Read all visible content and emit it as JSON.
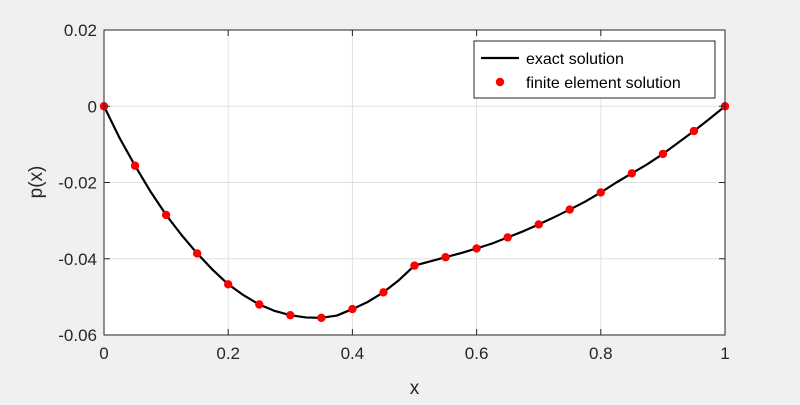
{
  "chart_data": {
    "type": "line",
    "title": "",
    "xlabel": "x",
    "ylabel": "p(x)",
    "xlim": [
      0,
      1
    ],
    "ylim": [
      -0.06,
      0.02
    ],
    "xticks": [
      0,
      0.2,
      0.4,
      0.6,
      0.8,
      1
    ],
    "xtick_labels": [
      "0",
      "0.2",
      "0.4",
      "0.6",
      "0.8",
      "1"
    ],
    "yticks": [
      -0.06,
      -0.04,
      -0.02,
      0,
      0.02
    ],
    "ytick_labels": [
      "-0.06",
      "-0.04",
      "-0.02",
      "0",
      "0.02"
    ],
    "grid": true,
    "legend_position": "top-right",
    "colors": {
      "exact": "#000000",
      "fem": "#ff0000",
      "axes_bg": "#ffffff",
      "figure_bg": "#f0f0f0",
      "grid": "#e0e0e0",
      "axis": "#262626"
    },
    "series": [
      {
        "name": "exact solution",
        "style": "line",
        "x": [
          0,
          0.025,
          0.05,
          0.075,
          0.1,
          0.125,
          0.15,
          0.175,
          0.2,
          0.225,
          0.25,
          0.275,
          0.3,
          0.325,
          0.35,
          0.375,
          0.4,
          0.425,
          0.45,
          0.475,
          0.5,
          0.525,
          0.55,
          0.575,
          0.6,
          0.625,
          0.65,
          0.675,
          0.7,
          0.725,
          0.75,
          0.775,
          0.8,
          0.825,
          0.85,
          0.875,
          0.9,
          0.925,
          0.95,
          0.975,
          1
        ],
        "y": [
          0,
          -0.0083,
          -0.0156,
          -0.0224,
          -0.0285,
          -0.0338,
          -0.0386,
          -0.0429,
          -0.0467,
          -0.0496,
          -0.052,
          -0.0537,
          -0.0548,
          -0.0554,
          -0.0555,
          -0.0549,
          -0.0532,
          -0.0513,
          -0.0488,
          -0.0456,
          -0.0418,
          -0.0407,
          -0.0396,
          -0.0385,
          -0.0373,
          -0.036,
          -0.0344,
          -0.0328,
          -0.031,
          -0.0291,
          -0.0271,
          -0.025,
          -0.0226,
          -0.02,
          -0.0176,
          -0.0152,
          -0.0125,
          -0.0095,
          -0.0065,
          -0.0033,
          0
        ]
      },
      {
        "name": "finite element solution",
        "style": "markers",
        "x": [
          0,
          0.05,
          0.1,
          0.15,
          0.2,
          0.25,
          0.3,
          0.35,
          0.4,
          0.45,
          0.5,
          0.55,
          0.6,
          0.65,
          0.7,
          0.75,
          0.8,
          0.85,
          0.9,
          0.95,
          1
        ],
        "y": [
          0,
          -0.0156,
          -0.0285,
          -0.0386,
          -0.0467,
          -0.052,
          -0.0548,
          -0.0555,
          -0.0532,
          -0.0488,
          -0.0418,
          -0.0396,
          -0.0373,
          -0.0344,
          -0.031,
          -0.0271,
          -0.0226,
          -0.0176,
          -0.0125,
          -0.0065,
          0
        ]
      }
    ]
  }
}
